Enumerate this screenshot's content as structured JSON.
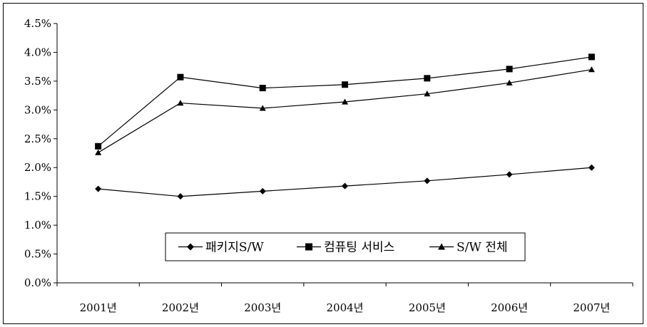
{
  "chart_data": {
    "type": "line",
    "categories": [
      "2001년",
      "2002년",
      "2003년",
      "2004년",
      "2005년",
      "2006년",
      "2007년"
    ],
    "series": [
      {
        "name": "패키지S/W",
        "marker": "diamond",
        "values": [
          1.63,
          1.5,
          1.59,
          1.68,
          1.77,
          1.88,
          2.0
        ]
      },
      {
        "name": "컴퓨팅 서비스",
        "marker": "square",
        "values": [
          2.37,
          3.57,
          3.38,
          3.44,
          3.55,
          3.71,
          3.92
        ]
      },
      {
        "name": "S/W 전체",
        "marker": "triangle",
        "values": [
          2.26,
          3.12,
          3.03,
          3.14,
          3.28,
          3.47,
          3.7
        ]
      }
    ],
    "yticks": [
      "0.0%",
      "0.5%",
      "1.0%",
      "1.5%",
      "2.0%",
      "2.5%",
      "3.0%",
      "3.5%",
      "4.0%",
      "4.5%"
    ],
    "ylim": [
      0,
      4.5
    ],
    "title": "",
    "xlabel": "",
    "ylabel": "",
    "grid": false,
    "legend_position": "lower-center",
    "line_color": "#000000"
  }
}
